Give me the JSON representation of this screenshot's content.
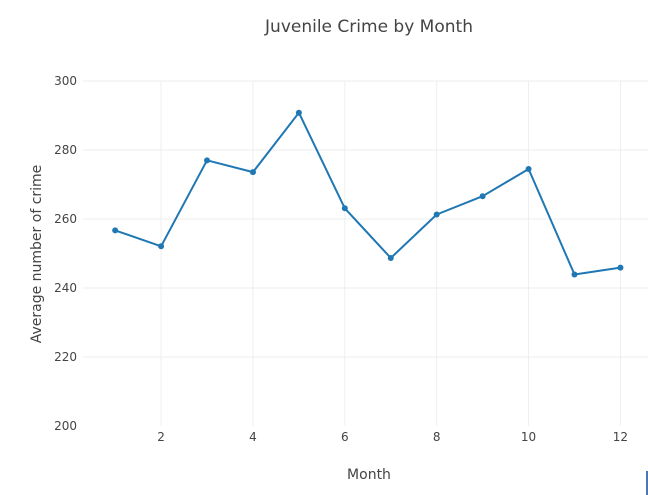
{
  "chart_data": {
    "type": "line",
    "title": "Juvenile Crime by Month",
    "xlabel": "Month",
    "ylabel": "Average number of crime",
    "xlim": [
      0.3,
      12.6
    ],
    "ylim": [
      200,
      300
    ],
    "x_ticks": [
      2,
      4,
      6,
      8,
      10,
      12
    ],
    "y_ticks": [
      200,
      220,
      240,
      260,
      280,
      300
    ],
    "grid": true,
    "legend": "none",
    "series": [
      {
        "x": [
          1,
          2,
          3,
          4,
          5,
          6,
          7,
          8,
          9,
          10,
          11,
          12
        ],
        "values": [
          256.7,
          252.1,
          277.0,
          273.6,
          290.8,
          263.1,
          248.7,
          261.3,
          266.6,
          274.5,
          243.9,
          245.9
        ],
        "color": "#1f77b4"
      }
    ]
  }
}
